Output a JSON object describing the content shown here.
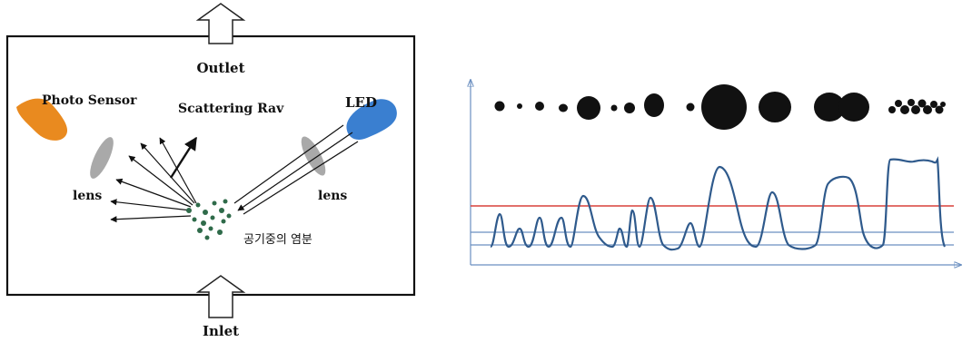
{
  "sensor_diagram": {
    "outlet_label": "Outlet",
    "inlet_label": "Inlet",
    "photo_sensor_label": "Photo Sensor",
    "scattering_ray_label": "Scattering Rav",
    "led_label": "LED",
    "lens_left_label": "lens",
    "lens_right_label": "lens",
    "dust_label": "공기중의 염분",
    "colors": {
      "photo_sensor": "#e98a1f",
      "led": "#3a7fd0",
      "lens": "#a9a9a9",
      "dust": "#2f6b4a",
      "box": "#111111"
    }
  },
  "signal_plot": {
    "colors": {
      "signal": "#2f5a8c",
      "threshold": "#d9403a",
      "baseline": "#6a8fc0",
      "axis": "#6a8fc0",
      "particle": "#111111"
    }
  }
}
